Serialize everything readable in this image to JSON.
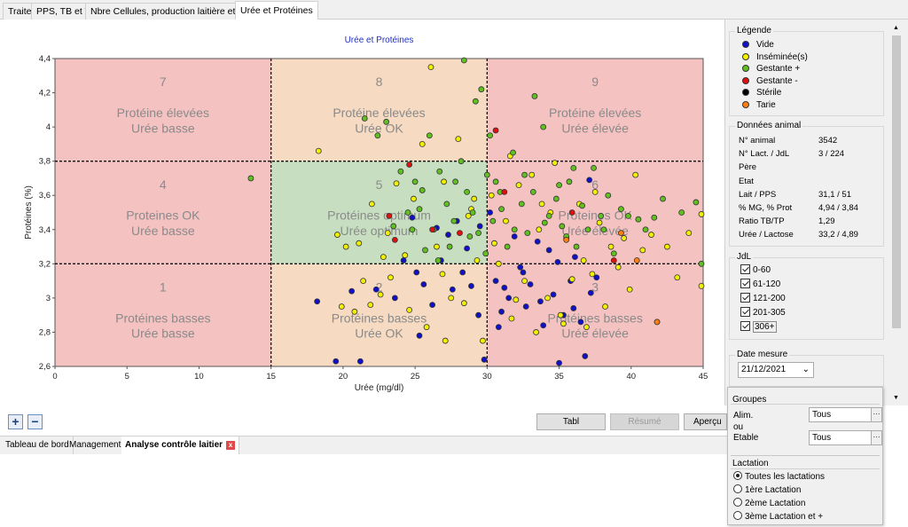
{
  "tabs_top": [
    "Traite",
    "PPS, TB et TP",
    "Nbre Cellules, production laitière et PPS",
    "Urée et Protéines"
  ],
  "chart_data": {
    "type": "scatter",
    "title": "Urée et Protéines",
    "xlabel": "Urée (mg/dl)",
    "ylabel": "Protéines (%)",
    "xlim": [
      0,
      45
    ],
    "ylim": [
      2.6,
      4.4
    ],
    "x_ticks": [
      "0",
      "5",
      "10",
      "15",
      "20",
      "25",
      "30",
      "35",
      "40",
      "45"
    ],
    "y_ticks": [
      "2,6",
      "2,8",
      "3",
      "3,2",
      "3,4",
      "3,6",
      "3,8",
      "4",
      "4,2",
      "4,4"
    ],
    "thresholds": {
      "x": [
        15,
        30
      ],
      "y": [
        3.2,
        3.8
      ]
    },
    "zones": [
      {
        "num": "7",
        "line1": "Protéine élevées",
        "line2": "Urée basse",
        "color": "#f5c2c2",
        "x": [
          0,
          15
        ],
        "y": [
          3.8,
          4.4
        ]
      },
      {
        "num": "8",
        "line1": "Protéine élevées",
        "line2": "Urée OK",
        "color": "#f6dac2",
        "x": [
          15,
          30
        ],
        "y": [
          3.8,
          4.4
        ]
      },
      {
        "num": "9",
        "line1": "Protéine élevées",
        "line2": "Urée élevée",
        "color": "#f5c2c2",
        "x": [
          30,
          45
        ],
        "y": [
          3.8,
          4.4
        ]
      },
      {
        "num": "4",
        "line1": "Proteines OK",
        "line2": "Urée basse",
        "color": "#f5c2c2",
        "x": [
          0,
          15
        ],
        "y": [
          3.2,
          3.8
        ]
      },
      {
        "num": "5",
        "line1": "Protéines optimum",
        "line2": "Urée optimum",
        "color": "#c7dfc0",
        "x": [
          15,
          30
        ],
        "y": [
          3.2,
          3.8
        ]
      },
      {
        "num": "6",
        "line1": "Proteines OK",
        "line2": "Urée élevée",
        "color": "#f5c2c2",
        "x": [
          30,
          45
        ],
        "y": [
          3.2,
          3.8
        ]
      },
      {
        "num": "1",
        "line1": "Protéines basses",
        "line2": "Urée basse",
        "color": "#f5c2c2",
        "x": [
          0,
          15
        ],
        "y": [
          2.6,
          3.2
        ]
      },
      {
        "num": "2",
        "line1": "Protéines basses",
        "line2": "Urée OK",
        "color": "#f6dac2",
        "x": [
          15,
          30
        ],
        "y": [
          2.6,
          3.2
        ]
      },
      {
        "num": "3",
        "line1": "Protéines basses",
        "line2": "Urée élevée",
        "color": "#f5c2c2",
        "x": [
          30,
          45
        ],
        "y": [
          2.6,
          3.2
        ]
      }
    ],
    "series": [
      {
        "name": "Vide",
        "color": "#1010c8",
        "points": [
          [
            18.2,
            2.98
          ],
          [
            19.5,
            2.63
          ],
          [
            20.6,
            3.04
          ],
          [
            21.2,
            2.63
          ],
          [
            22.3,
            3.05
          ],
          [
            23.6,
            3.0
          ],
          [
            24.2,
            3.22
          ],
          [
            24.8,
            3.47
          ],
          [
            25.3,
            2.78
          ],
          [
            25.6,
            3.08
          ],
          [
            26.2,
            2.96
          ],
          [
            26.8,
            3.22
          ],
          [
            27.3,
            3.37
          ],
          [
            27.9,
            3.45
          ],
          [
            28.3,
            3.15
          ],
          [
            28.9,
            3.07
          ],
          [
            29.4,
            2.9
          ],
          [
            29.8,
            2.64
          ],
          [
            30.2,
            3.5
          ],
          [
            30.6,
            3.1
          ],
          [
            31.0,
            2.92
          ],
          [
            31.5,
            3.0
          ],
          [
            31.9,
            3.36
          ],
          [
            32.3,
            3.18
          ],
          [
            32.7,
            2.95
          ],
          [
            33.0,
            3.08
          ],
          [
            33.5,
            3.33
          ],
          [
            33.9,
            2.84
          ],
          [
            34.3,
            3.28
          ],
          [
            34.6,
            3.02
          ],
          [
            35.0,
            2.62
          ],
          [
            35.3,
            2.9
          ],
          [
            35.8,
            3.1
          ],
          [
            36.1,
            3.24
          ],
          [
            36.5,
            2.86
          ],
          [
            36.8,
            2.66
          ],
          [
            37.2,
            3.03
          ],
          [
            37.6,
            3.12
          ],
          [
            25.1,
            3.15
          ],
          [
            26.5,
            3.41
          ],
          [
            27.6,
            3.05
          ],
          [
            28.6,
            3.29
          ],
          [
            29.5,
            3.42
          ],
          [
            31.2,
            3.06
          ],
          [
            32.5,
            3.15
          ],
          [
            33.7,
            2.98
          ],
          [
            34.9,
            3.21
          ],
          [
            36.0,
            2.94
          ],
          [
            37.1,
            3.69
          ],
          [
            30.8,
            2.83
          ]
        ]
      },
      {
        "name": "Inséminée(s)",
        "color": "#f0f000",
        "points": [
          [
            18.3,
            3.86
          ],
          [
            19.6,
            3.37
          ],
          [
            20.2,
            3.3
          ],
          [
            20.8,
            2.92
          ],
          [
            21.4,
            3.1
          ],
          [
            22.0,
            3.55
          ],
          [
            22.6,
            3.02
          ],
          [
            23.1,
            3.38
          ],
          [
            23.7,
            3.67
          ],
          [
            24.3,
            3.25
          ],
          [
            24.9,
            3.58
          ],
          [
            25.5,
            3.9
          ],
          [
            26.1,
            4.35
          ],
          [
            26.5,
            3.3
          ],
          [
            27.0,
            3.68
          ],
          [
            27.5,
            3.0
          ],
          [
            28.0,
            3.93
          ],
          [
            28.4,
            2.97
          ],
          [
            28.9,
            3.52
          ],
          [
            29.3,
            3.22
          ],
          [
            29.7,
            2.75
          ],
          [
            30.3,
            3.6
          ],
          [
            30.8,
            3.2
          ],
          [
            31.3,
            3.45
          ],
          [
            31.7,
            2.88
          ],
          [
            32.2,
            3.66
          ],
          [
            32.6,
            3.1
          ],
          [
            33.1,
            3.72
          ],
          [
            33.4,
            2.8
          ],
          [
            33.8,
            3.55
          ],
          [
            34.2,
            3.0
          ],
          [
            34.7,
            3.79
          ],
          [
            35.1,
            2.9
          ],
          [
            35.5,
            3.35
          ],
          [
            35.9,
            3.11
          ],
          [
            36.4,
            3.55
          ],
          [
            36.9,
            2.83
          ],
          [
            37.3,
            3.14
          ],
          [
            37.8,
            3.44
          ],
          [
            38.2,
            2.95
          ],
          [
            38.6,
            3.3
          ],
          [
            39.1,
            3.18
          ],
          [
            39.5,
            3.35
          ],
          [
            39.9,
            3.05
          ],
          [
            40.3,
            3.72
          ],
          [
            40.8,
            3.28
          ],
          [
            41.4,
            3.37
          ],
          [
            41.8,
            2.86
          ],
          [
            42.5,
            3.3
          ],
          [
            43.2,
            3.12
          ],
          [
            44.0,
            3.38
          ],
          [
            45.0,
            3.07
          ],
          [
            45.0,
            3.49
          ],
          [
            25.8,
            2.83
          ],
          [
            27.1,
            2.75
          ],
          [
            28.7,
            3.48
          ],
          [
            30.5,
            3.32
          ],
          [
            32.0,
            2.99
          ],
          [
            33.6,
            3.4
          ],
          [
            35.3,
            2.85
          ],
          [
            36.7,
            3.22
          ],
          [
            21.9,
            2.96
          ],
          [
            23.3,
            3.12
          ],
          [
            24.6,
            2.93
          ],
          [
            26.9,
            3.14
          ],
          [
            29.1,
            3.58
          ],
          [
            31.6,
            3.83
          ],
          [
            34.4,
            3.5
          ],
          [
            37.5,
            3.62
          ],
          [
            22.8,
            3.24
          ],
          [
            21.1,
            3.32
          ],
          [
            19.9,
            2.95
          ]
        ]
      },
      {
        "name": "Gestante +",
        "color": "#60c020",
        "points": [
          [
            13.6,
            3.7
          ],
          [
            21.5,
            4.05
          ],
          [
            22.4,
            3.95
          ],
          [
            23.0,
            4.03
          ],
          [
            24.0,
            3.74
          ],
          [
            24.5,
            3.5
          ],
          [
            25.0,
            3.68
          ],
          [
            25.5,
            3.63
          ],
          [
            26.0,
            3.95
          ],
          [
            26.3,
            3.4
          ],
          [
            26.7,
            3.74
          ],
          [
            27.2,
            3.55
          ],
          [
            27.7,
            3.45
          ],
          [
            28.2,
            3.8
          ],
          [
            28.6,
            3.62
          ],
          [
            29.0,
            3.5
          ],
          [
            29.2,
            4.15
          ],
          [
            29.6,
            4.22
          ],
          [
            30.0,
            3.72
          ],
          [
            30.4,
            3.45
          ],
          [
            30.9,
            3.62
          ],
          [
            31.4,
            3.3
          ],
          [
            31.8,
            3.85
          ],
          [
            32.4,
            3.55
          ],
          [
            32.8,
            3.38
          ],
          [
            33.2,
            3.62
          ],
          [
            33.9,
            4.0
          ],
          [
            34.3,
            3.48
          ],
          [
            34.8,
            3.58
          ],
          [
            35.2,
            3.42
          ],
          [
            35.7,
            3.68
          ],
          [
            36.2,
            3.3
          ],
          [
            36.6,
            3.54
          ],
          [
            37.0,
            3.4
          ],
          [
            37.4,
            3.76
          ],
          [
            37.9,
            3.48
          ],
          [
            38.4,
            3.6
          ],
          [
            38.8,
            3.26
          ],
          [
            39.3,
            3.52
          ],
          [
            39.8,
            3.48
          ],
          [
            40.5,
            3.46
          ],
          [
            41.0,
            3.4
          ],
          [
            41.6,
            3.47
          ],
          [
            42.2,
            3.58
          ],
          [
            43.5,
            3.5
          ],
          [
            44.5,
            3.56
          ],
          [
            45.0,
            3.2
          ],
          [
            25.7,
            3.28
          ],
          [
            27.4,
            3.3
          ],
          [
            28.8,
            3.36
          ],
          [
            29.9,
            3.26
          ],
          [
            31.0,
            3.52
          ],
          [
            32.6,
            3.72
          ],
          [
            34.0,
            3.44
          ],
          [
            35.5,
            3.36
          ],
          [
            28.4,
            4.4
          ],
          [
            30.2,
            3.95
          ],
          [
            33.3,
            4.18
          ],
          [
            26.6,
            3.22
          ],
          [
            29.4,
            3.38
          ],
          [
            24.8,
            3.4
          ],
          [
            23.5,
            3.42
          ],
          [
            27.8,
            3.68
          ],
          [
            31.9,
            3.4
          ],
          [
            35.0,
            3.66
          ],
          [
            38.1,
            3.4
          ],
          [
            36.0,
            3.76
          ],
          [
            30.6,
            3.68
          ],
          [
            25.3,
            3.52
          ]
        ]
      },
      {
        "name": "Gestante -",
        "color": "#e01010",
        "points": [
          [
            23.2,
            3.48
          ],
          [
            24.6,
            3.78
          ],
          [
            26.2,
            3.4
          ],
          [
            28.1,
            3.38
          ],
          [
            30.6,
            3.98
          ],
          [
            31.2,
            3.62
          ],
          [
            35.9,
            3.5
          ],
          [
            38.8,
            3.22
          ],
          [
            23.6,
            3.34
          ]
        ]
      },
      {
        "name": "Stérile",
        "color": "#000000",
        "points": []
      },
      {
        "name": "Tarie",
        "color": "#ff8010",
        "points": [
          [
            35.5,
            3.34
          ],
          [
            39.3,
            3.38
          ],
          [
            40.4,
            3.22
          ],
          [
            41.8,
            2.86
          ]
        ]
      }
    ]
  },
  "legend": {
    "title": "Légende",
    "items": [
      {
        "label": "Vide",
        "color": "#1010c8"
      },
      {
        "label": "Inséminée(s)",
        "color": "#f0f000"
      },
      {
        "label": "Gestante +",
        "color": "#60c020"
      },
      {
        "label": "Gestante -",
        "color": "#e01010"
      },
      {
        "label": "Stérile",
        "color": "#000000"
      },
      {
        "label": "Tarie",
        "color": "#ff8010"
      }
    ]
  },
  "animal": {
    "title": "Données animal",
    "rows": [
      {
        "label": "N° animal",
        "value": "3542"
      },
      {
        "label": "N° Lact. / JdL",
        "value": "3 / 224"
      },
      {
        "label": "Père",
        "value": ""
      },
      {
        "label": "Etat",
        "value": ""
      },
      {
        "label": "Lait / PPS",
        "value": "31,1 / 51"
      },
      {
        "label": "% MG, % Prot",
        "value": "4,94 / 3,84"
      },
      {
        "label": "Ratio TB/TP",
        "value": "1,29"
      },
      {
        "label": "Urée / Lactose",
        "value": "33,2 / 4,89"
      }
    ]
  },
  "jdl": {
    "title": "JdL",
    "items": [
      {
        "label": "0-60",
        "checked": true
      },
      {
        "label": "61-120",
        "checked": true
      },
      {
        "label": "121-200",
        "checked": true
      },
      {
        "label": "201-305",
        "checked": true
      },
      {
        "label": "306+",
        "checked": true
      }
    ]
  },
  "date": {
    "title": "Date mesure",
    "value": "21/12/2021"
  },
  "buttons": {
    "tabl": "Tabl",
    "resume": "Résumé",
    "apercu": "Aperçu",
    "plus": "+",
    "minus": "−"
  },
  "tabs_bottom": [
    "Tableau de bord",
    "Management",
    "Analyse contrôle laitier"
  ],
  "popup": {
    "groupes_title": "Groupes",
    "alim_label": "Alim.",
    "ou_label": "ou",
    "etable_label": "Etable",
    "alim_value": "Tous",
    "etable_value": "Tous",
    "lactation_title": "Lactation",
    "lactation_options": [
      "Toutes les lactations",
      "1ère Lactation",
      "2ème Lactation",
      "3ème Lactation et +"
    ],
    "lactation_selected": 0
  }
}
